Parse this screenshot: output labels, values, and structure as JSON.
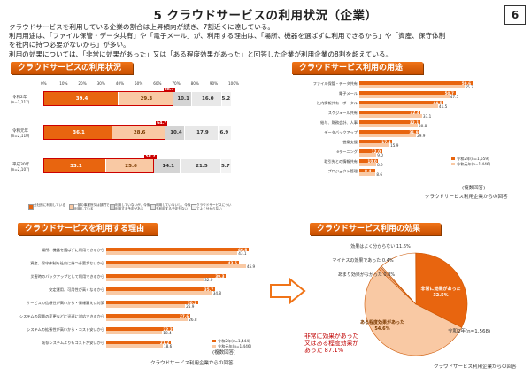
{
  "page": {
    "title": "5 クラウドサービスの利用状況（企業）",
    "page_number": "6",
    "intro": [
      "クラウドサービスを利用している企業の割合は上昇傾向が続き、7割近くに達している。",
      "利用用途は、「ファイル保管・データ共有」や「電子メール」が、利用する理由は、「場所、機器を選ばずに利用できるから」や「資産、保守体制",
      "を社内に持つ必要がないから」が多い。",
      "利用の効果については、「非常に効果があった」又は「ある程度効果があった」と回答した企業が利用企業の8割を超えている。"
    ]
  },
  "colors": {
    "dark": "#e8650f",
    "light": "#f9c9a4",
    "grey1": "#d4d4d4",
    "grey2": "#e8e8e8",
    "grey3": "#f3f3f3",
    "accent_line": "#cc0000"
  },
  "status": {
    "header": "クラウドサービスの利用状況",
    "ticks": [
      "0%",
      "10%",
      "20%",
      "30%",
      "40%",
      "50%",
      "60%",
      "70%",
      "80%",
      "90%",
      "100%"
    ],
    "rows": [
      {
        "label": "令和2年",
        "n": "(n=2,217)",
        "values": [
          39.4,
          29.3,
          10.1,
          16.0,
          5.2
        ],
        "total": "68.7"
      },
      {
        "label": "令和元年",
        "n": "(n=2,110)",
        "values": [
          36.1,
          28.6,
          10.4,
          17.9,
          6.9
        ],
        "total": "64.7"
      },
      {
        "label": "平成30年",
        "n": "(n=2,107)",
        "values": [
          33.1,
          25.6,
          14.1,
          21.5,
          5.7
        ],
        "total": "58.7"
      }
    ],
    "legend": [
      "全社的に利用している",
      "一部の事業所又は部門で利用している",
      "利用していないが、今後利用する予定がある",
      "利用していないし、今後も利用する予定もない",
      "クラウドサービスについてよく分からない"
    ]
  },
  "usage": {
    "header": "クラウドサービス利用の用途",
    "items": [
      {
        "label": "ファイル保管・データ共有",
        "a": "59.6",
        "b": "55.3"
      },
      {
        "label": "電子メール",
        "a": "50.7",
        "b": "47.5"
      },
      {
        "label": "社内情報共有・ポータル",
        "a": "44.5",
        "b": "41.5"
      },
      {
        "label": "スケジュール共有",
        "a": "32.4",
        "b": "33.1"
      },
      {
        "label": "給与、財務会計、人事",
        "a": "32.1",
        "b": "30.8"
      },
      {
        "label": "データバックアップ",
        "a": "31.9",
        "b": "29.9"
      },
      {
        "label": "営業支援",
        "a": "17.4",
        "b": "15.9"
      },
      {
        "label": "eラーニング",
        "a": "12.0",
        "b": "9.0"
      },
      {
        "label": "取引先との情報共有",
        "a": "10.0",
        "b": "8.9"
      },
      {
        "label": "プロジェクト管理",
        "a": "8.4",
        "b": "8.6"
      }
    ],
    "legend": [
      "令和2年(n=1,559)",
      "令和元年(n=1,446)"
    ],
    "note": "(複数回答)",
    "source": "クラウドサービス利用企業からの回答"
  },
  "reasons": {
    "header": "クラウドサービスを利用する理由",
    "items": [
      {
        "label": "場所、機器を選ばずに利用できるから",
        "a": "46.8",
        "b": "43.1"
      },
      {
        "label": "資産、保守体制を社内に持つ必要がないから",
        "a": "43.5",
        "b": "45.9"
      },
      {
        "label": "災害時のバックアップとして利用できるから",
        "a": "39.3",
        "b": "32.0"
      },
      {
        "label": "安定運用、可用性が高くなるから",
        "a": "35.7",
        "b": "34.8"
      },
      {
        "label": "サービスの信頼性が高いから・情報漏えい対策",
        "a": "30.2",
        "b": "25.9"
      },
      {
        "label": "システムの容量の変更などに迅速に対応できるから",
        "a": "27.6",
        "b": "26.8"
      },
      {
        "label": "システムの拡張性が高いから・コスト安いから",
        "a": "22.2",
        "b": "18.4"
      },
      {
        "label": "既存システムよりもコストが安いから",
        "a": "21.2",
        "b": "18.6"
      }
    ],
    "legend": [
      "令和2年(n=1,444)",
      "令和元年(n=1,446)"
    ],
    "note": "(複数回答)",
    "source": "クラウドサービス利用企業からの回答"
  },
  "effect": {
    "header": "クラウドサービス利用の効果",
    "slices": [
      {
        "label": "非常に効果があった",
        "value": 32.5
      },
      {
        "label": "ある程度効果があった",
        "value": 54.6
      },
      {
        "label": "あまり効果がなかった",
        "value": 0.8
      },
      {
        "label": "マイナスの効果であった",
        "value": 0.4
      },
      {
        "label": "効果はよく分からない",
        "value": 11.6
      }
    ],
    "slice_texts": [
      "非常に効果があった\n32.5%",
      "ある程度効果があった\n54.6%",
      "あまり効果がなかった 0.8%",
      "マイナスの効果であった 0.4%",
      "効果はよく分からない 11.6%"
    ],
    "year_note": "令和2年(n=1,568)",
    "callout": [
      "非常に効果があった",
      "又はある程度効果が",
      "あった 87.1%"
    ],
    "source": "クラウドサービス利用企業からの回答"
  }
}
